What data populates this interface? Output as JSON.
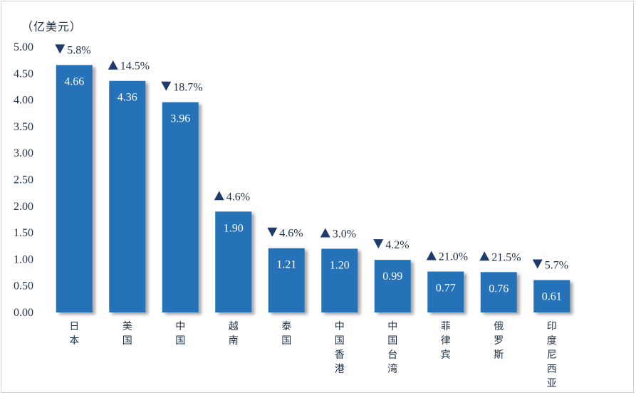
{
  "chart_data": {
    "type": "bar",
    "unit_label": "（亿美元）",
    "categories": [
      "日本",
      "美国",
      "中国",
      "越南",
      "泰国",
      "中国香港",
      "中国台湾",
      "菲律宾",
      "俄罗斯",
      "印度尼西亚"
    ],
    "values": [
      4.66,
      4.36,
      3.96,
      1.9,
      1.21,
      1.2,
      0.99,
      0.77,
      0.76,
      0.61
    ],
    "value_labels": [
      "4.66",
      "4.36",
      "3.96",
      "1.90",
      "1.21",
      "1.20",
      "0.99",
      "0.77",
      "0.76",
      "0.61"
    ],
    "changes": [
      {
        "direction": "down",
        "text": "5.8%"
      },
      {
        "direction": "up",
        "text": "14.5%"
      },
      {
        "direction": "down",
        "text": "18.7%"
      },
      {
        "direction": "up",
        "text": "4.6%"
      },
      {
        "direction": "down",
        "text": "4.6%"
      },
      {
        "direction": "up",
        "text": "3.0%"
      },
      {
        "direction": "down",
        "text": "4.2%"
      },
      {
        "direction": "up",
        "text": "21.0%"
      },
      {
        "direction": "up",
        "text": "21.5%"
      },
      {
        "direction": "down",
        "text": "5.7%"
      }
    ],
    "ylim": [
      0,
      5
    ],
    "yticks": [
      "0.00",
      "0.50",
      "1.00",
      "1.50",
      "2.00",
      "2.50",
      "3.00",
      "3.50",
      "4.00",
      "4.50",
      "5.00"
    ],
    "grid": false,
    "colors": {
      "bar": "#2672b9",
      "text": "#1f2f45",
      "marker": "#1f3b6e"
    }
  }
}
